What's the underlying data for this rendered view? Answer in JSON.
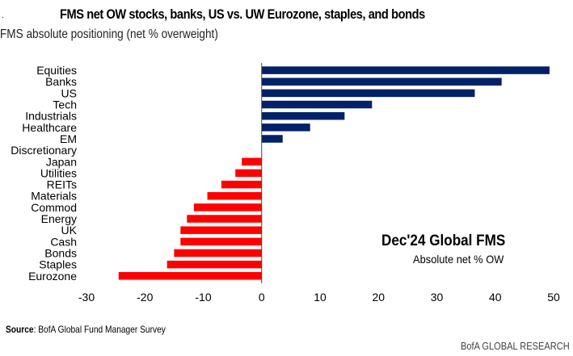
{
  "chart_data": {
    "type": "bar",
    "orientation": "horizontal",
    "title": "FMS net OW stocks, banks, US vs. UW Eurozone, staples, and bonds",
    "subtitle": "FMS absolute positioning (net % overweight)",
    "xlabel": "",
    "ylabel": "",
    "xlim": [
      -30,
      50
    ],
    "xticks": [
      -30,
      -20,
      -10,
      0,
      10,
      20,
      30,
      40,
      50
    ],
    "grid": false,
    "categories": [
      "Equities",
      "Banks",
      "US",
      "Tech",
      "Industrials",
      "Healthcare",
      "EM",
      "Discretionary",
      "Japan",
      "Utilities",
      "REITs",
      "Materials",
      "Commod",
      "Energy",
      "UK",
      "Cash",
      "Bonds",
      "Staples",
      "Eurozone"
    ],
    "values": [
      49.3,
      41.1,
      36.5,
      18.9,
      14.2,
      8.3,
      3.6,
      0.0,
      -3.4,
      -4.5,
      -6.9,
      -9.3,
      -11.6,
      -12.8,
      -13.9,
      -13.9,
      -15.0,
      -16.2,
      -24.5
    ],
    "colors": {
      "positive": "#012169",
      "negative": "#ff0000"
    },
    "annotation": {
      "title": "Dec'24 Global FMS",
      "subtitle": "Absolute net % OW"
    }
  },
  "footer": {
    "source_label": "Source",
    "source_text": ": BofA Global Fund Manager Survey",
    "brand": "BofA GLOBAL RESEARCH"
  }
}
